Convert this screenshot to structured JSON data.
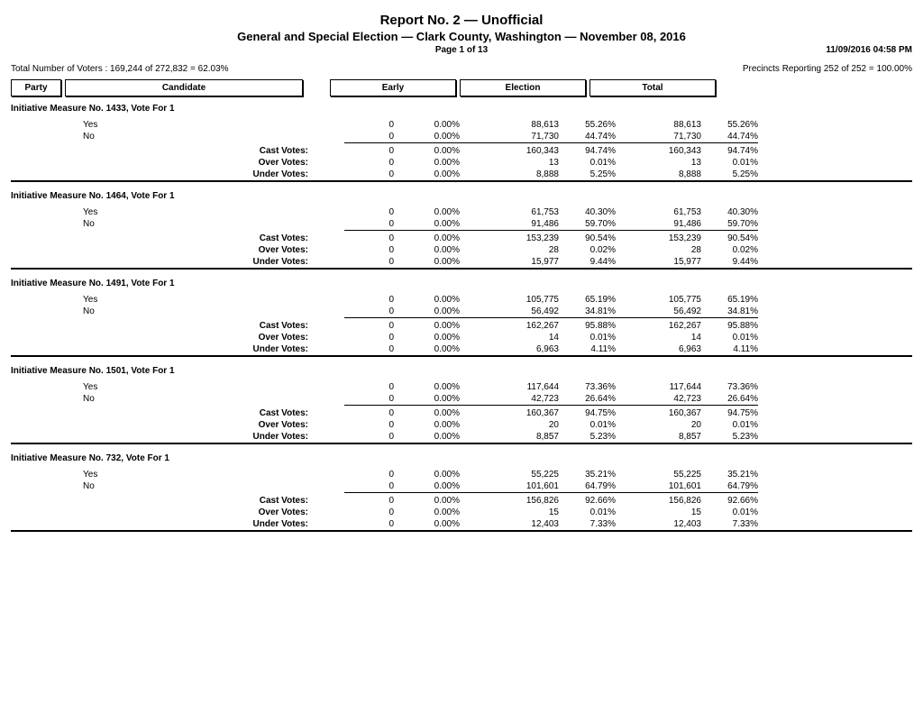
{
  "header": {
    "title1": "Report No. 2  —  Unofficial",
    "title2": "General and Special Election  —  Clark County, Washington  —  November 08, 2016",
    "page": "Page 1 of 13",
    "timestamp": "11/09/2016 04:58 PM",
    "total_voters": "Total Number of Voters : 169,244 of 272,832 = 62.03%",
    "precincts": "Precincts Reporting 252 of 252 = 100.00%",
    "col_party": "Party",
    "col_candidate": "Candidate",
    "col_early": "Early",
    "col_election": "Election",
    "col_total": "Total"
  },
  "labels": {
    "cast": "Cast Votes:",
    "over": "Over Votes:",
    "under": "Under Votes:"
  },
  "contests": [
    {
      "title": "Initiative Measure No. 1433, Vote For 1",
      "choices": [
        {
          "name": "Yes",
          "ev": "0",
          "ep": "0.00%",
          "elv": "88,613",
          "elp": "55.26%",
          "tv": "88,613",
          "tp": "55.26%"
        },
        {
          "name": "No",
          "ev": "0",
          "ep": "0.00%",
          "elv": "71,730",
          "elp": "44.74%",
          "tv": "71,730",
          "tp": "44.74%"
        }
      ],
      "summary": [
        {
          "label": "cast",
          "ev": "0",
          "ep": "0.00%",
          "elv": "160,343",
          "elp": "94.74%",
          "tv": "160,343",
          "tp": "94.74%"
        },
        {
          "label": "over",
          "ev": "0",
          "ep": "0.00%",
          "elv": "13",
          "elp": "0.01%",
          "tv": "13",
          "tp": "0.01%"
        },
        {
          "label": "under",
          "ev": "0",
          "ep": "0.00%",
          "elv": "8,888",
          "elp": "5.25%",
          "tv": "8,888",
          "tp": "5.25%"
        }
      ]
    },
    {
      "title": "Initiative Measure No. 1464, Vote For 1",
      "choices": [
        {
          "name": "Yes",
          "ev": "0",
          "ep": "0.00%",
          "elv": "61,753",
          "elp": "40.30%",
          "tv": "61,753",
          "tp": "40.30%"
        },
        {
          "name": "No",
          "ev": "0",
          "ep": "0.00%",
          "elv": "91,486",
          "elp": "59.70%",
          "tv": "91,486",
          "tp": "59.70%"
        }
      ],
      "summary": [
        {
          "label": "cast",
          "ev": "0",
          "ep": "0.00%",
          "elv": "153,239",
          "elp": "90.54%",
          "tv": "153,239",
          "tp": "90.54%"
        },
        {
          "label": "over",
          "ev": "0",
          "ep": "0.00%",
          "elv": "28",
          "elp": "0.02%",
          "tv": "28",
          "tp": "0.02%"
        },
        {
          "label": "under",
          "ev": "0",
          "ep": "0.00%",
          "elv": "15,977",
          "elp": "9.44%",
          "tv": "15,977",
          "tp": "9.44%"
        }
      ]
    },
    {
      "title": "Initiative Measure No. 1491, Vote For 1",
      "choices": [
        {
          "name": "Yes",
          "ev": "0",
          "ep": "0.00%",
          "elv": "105,775",
          "elp": "65.19%",
          "tv": "105,775",
          "tp": "65.19%"
        },
        {
          "name": "No",
          "ev": "0",
          "ep": "0.00%",
          "elv": "56,492",
          "elp": "34.81%",
          "tv": "56,492",
          "tp": "34.81%"
        }
      ],
      "summary": [
        {
          "label": "cast",
          "ev": "0",
          "ep": "0.00%",
          "elv": "162,267",
          "elp": "95.88%",
          "tv": "162,267",
          "tp": "95.88%"
        },
        {
          "label": "over",
          "ev": "0",
          "ep": "0.00%",
          "elv": "14",
          "elp": "0.01%",
          "tv": "14",
          "tp": "0.01%"
        },
        {
          "label": "under",
          "ev": "0",
          "ep": "0.00%",
          "elv": "6,963",
          "elp": "4.11%",
          "tv": "6,963",
          "tp": "4.11%"
        }
      ]
    },
    {
      "title": "Initiative Measure No. 1501, Vote For 1",
      "choices": [
        {
          "name": "Yes",
          "ev": "0",
          "ep": "0.00%",
          "elv": "117,644",
          "elp": "73.36%",
          "tv": "117,644",
          "tp": "73.36%"
        },
        {
          "name": "No",
          "ev": "0",
          "ep": "0.00%",
          "elv": "42,723",
          "elp": "26.64%",
          "tv": "42,723",
          "tp": "26.64%"
        }
      ],
      "summary": [
        {
          "label": "cast",
          "ev": "0",
          "ep": "0.00%",
          "elv": "160,367",
          "elp": "94.75%",
          "tv": "160,367",
          "tp": "94.75%"
        },
        {
          "label": "over",
          "ev": "0",
          "ep": "0.00%",
          "elv": "20",
          "elp": "0.01%",
          "tv": "20",
          "tp": "0.01%"
        },
        {
          "label": "under",
          "ev": "0",
          "ep": "0.00%",
          "elv": "8,857",
          "elp": "5.23%",
          "tv": "8,857",
          "tp": "5.23%"
        }
      ]
    },
    {
      "title": "Initiative Measure No. 732, Vote For 1",
      "choices": [
        {
          "name": "Yes",
          "ev": "0",
          "ep": "0.00%",
          "elv": "55,225",
          "elp": "35.21%",
          "tv": "55,225",
          "tp": "35.21%"
        },
        {
          "name": "No",
          "ev": "0",
          "ep": "0.00%",
          "elv": "101,601",
          "elp": "64.79%",
          "tv": "101,601",
          "tp": "64.79%"
        }
      ],
      "summary": [
        {
          "label": "cast",
          "ev": "0",
          "ep": "0.00%",
          "elv": "156,826",
          "elp": "92.66%",
          "tv": "156,826",
          "tp": "92.66%"
        },
        {
          "label": "over",
          "ev": "0",
          "ep": "0.00%",
          "elv": "15",
          "elp": "0.01%",
          "tv": "15",
          "tp": "0.01%"
        },
        {
          "label": "under",
          "ev": "0",
          "ep": "0.00%",
          "elv": "12,403",
          "elp": "7.33%",
          "tv": "12,403",
          "tp": "7.33%"
        }
      ]
    }
  ]
}
